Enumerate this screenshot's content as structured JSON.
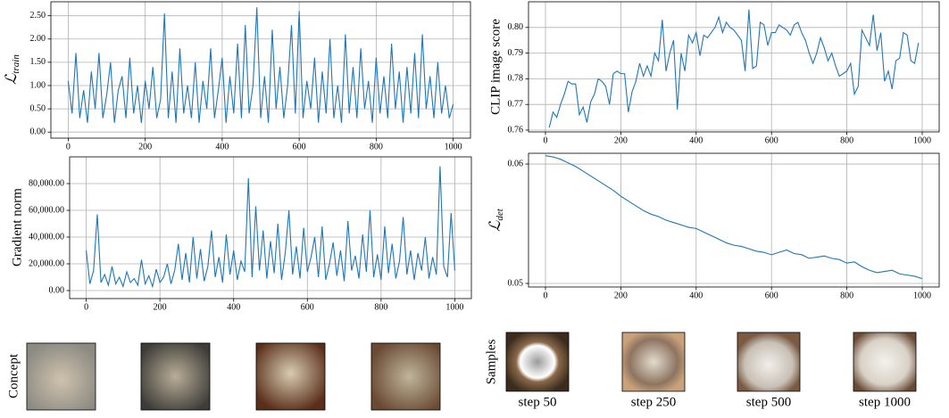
{
  "chart_data": [
    {
      "type": "line",
      "ylabel": {
        "symbol": "ℒ",
        "sub": "train"
      },
      "color": "#1f77b4",
      "grid": true,
      "xlim": [
        -45,
        1045
      ],
      "ylim": [
        -0.13,
        2.8
      ],
      "xticks": [
        0,
        200,
        400,
        600,
        800,
        1000
      ],
      "yticks": [
        {
          "value": 0,
          "label": "0.00"
        },
        {
          "value": 0.5,
          "label": "0.50"
        },
        {
          "value": 1,
          "label": "1.00"
        },
        {
          "value": 1.5,
          "label": "1.50"
        },
        {
          "value": 2,
          "label": "2.00"
        },
        {
          "value": 2.5,
          "label": "2.50"
        }
      ],
      "x": [
        0,
        10,
        20,
        30,
        40,
        50,
        60,
        70,
        80,
        90,
        100,
        110,
        120,
        130,
        140,
        150,
        160,
        170,
        180,
        190,
        200,
        210,
        220,
        230,
        240,
        250,
        260,
        270,
        280,
        290,
        300,
        310,
        320,
        330,
        340,
        350,
        360,
        370,
        380,
        390,
        400,
        410,
        420,
        430,
        440,
        450,
        460,
        470,
        480,
        490,
        500,
        510,
        520,
        530,
        540,
        550,
        560,
        570,
        580,
        590,
        600,
        610,
        620,
        630,
        640,
        650,
        660,
        670,
        680,
        690,
        700,
        710,
        720,
        730,
        740,
        750,
        760,
        770,
        780,
        790,
        800,
        810,
        820,
        830,
        840,
        850,
        860,
        870,
        880,
        890,
        900,
        910,
        920,
        930,
        940,
        950,
        960,
        970,
        980,
        990,
        1000
      ],
      "values": [
        1.1,
        0.4,
        1.7,
        0.3,
        0.9,
        0.2,
        1.3,
        0.5,
        1.7,
        0.3,
        0.8,
        1.5,
        0.2,
        0.9,
        1.2,
        0.3,
        1.6,
        0.4,
        1.0,
        0.2,
        1.1,
        0.5,
        1.4,
        0.3,
        0.7,
        2.55,
        0.3,
        1.3,
        0.2,
        1.8,
        0.4,
        1.0,
        0.3,
        1.5,
        0.2,
        1.1,
        0.5,
        1.8,
        0.3,
        0.9,
        1.6,
        0.2,
        1.2,
        0.4,
        1.9,
        0.3,
        2.3,
        0.4,
        1.0,
        2.68,
        0.3,
        1.2,
        0.2,
        2.2,
        0.5,
        1.4,
        0.3,
        1.0,
        2.3,
        0.4,
        2.6,
        0.3,
        1.1,
        0.5,
        1.6,
        0.2,
        1.3,
        0.4,
        2.0,
        0.3,
        1.0,
        0.2,
        2.1,
        0.4,
        1.4,
        0.3,
        1.8,
        0.5,
        1.1,
        0.2,
        1.6,
        0.4,
        1.2,
        0.3,
        1.9,
        0.5,
        1.3,
        0.2,
        1.4,
        0.4,
        1.7,
        0.3,
        2.1,
        0.5,
        1.2,
        0.3,
        1.5,
        0.4,
        1.0,
        0.3,
        0.6
      ]
    },
    {
      "type": "line",
      "ylabel": "Gradient norm",
      "color": "#1f77b4",
      "grid": true,
      "xlim": [
        -45,
        1045
      ],
      "ylim": [
        -6000,
        100000
      ],
      "xticks": [
        0,
        200,
        400,
        600,
        800,
        1000
      ],
      "yticks": [
        {
          "value": 0,
          "label": "0.00"
        },
        {
          "value": 20000,
          "label": "20,000.00"
        },
        {
          "value": 40000,
          "label": "40,000.00"
        },
        {
          "value": 60000,
          "label": "60,000.00"
        },
        {
          "value": 80000,
          "label": "80,000.00"
        }
      ],
      "x": [
        0,
        10,
        20,
        30,
        40,
        50,
        60,
        70,
        80,
        90,
        100,
        110,
        120,
        130,
        140,
        150,
        160,
        170,
        180,
        190,
        200,
        210,
        220,
        230,
        240,
        250,
        260,
        270,
        280,
        290,
        300,
        310,
        320,
        330,
        340,
        350,
        360,
        370,
        380,
        390,
        400,
        410,
        420,
        430,
        440,
        450,
        460,
        470,
        480,
        490,
        500,
        510,
        520,
        530,
        540,
        550,
        560,
        570,
        580,
        590,
        600,
        610,
        620,
        630,
        640,
        650,
        660,
        670,
        680,
        690,
        700,
        710,
        720,
        730,
        740,
        750,
        760,
        770,
        780,
        790,
        800,
        810,
        820,
        830,
        840,
        850,
        860,
        870,
        880,
        890,
        900,
        910,
        920,
        930,
        940,
        950,
        960,
        970,
        980,
        990,
        1000
      ],
      "values": [
        30000,
        5000,
        15000,
        57000,
        6000,
        12000,
        4000,
        18000,
        5000,
        10000,
        3000,
        14000,
        6000,
        9000,
        4000,
        23000,
        5000,
        11000,
        3000,
        16000,
        6000,
        10000,
        20000,
        5000,
        15000,
        35000,
        8000,
        28000,
        6000,
        40000,
        9000,
        31000,
        7000,
        18000,
        45000,
        10000,
        25000,
        6000,
        42000,
        12000,
        30000,
        8000,
        22000,
        14000,
        84000,
        10000,
        63000,
        15000,
        45000,
        9000,
        37000,
        13000,
        50000,
        8000,
        28000,
        60000,
        12000,
        33000,
        9000,
        47000,
        14000,
        25000,
        40000,
        10000,
        48000,
        8000,
        20000,
        36000,
        11000,
        30000,
        7000,
        52000,
        15000,
        26000,
        9000,
        42000,
        14000,
        60000,
        10000,
        27000,
        8000,
        48000,
        13000,
        35000,
        9000,
        22000,
        55000,
        12000,
        30000,
        8000,
        28000,
        15000,
        40000,
        9000,
        25000,
        12000,
        93000,
        18000,
        10000,
        58000,
        15000
      ]
    },
    {
      "type": "line",
      "ylabel": "CLIP image score",
      "color": "#1f77b4",
      "grid": true,
      "xlim": [
        -45,
        1045
      ],
      "ylim": [
        0.7593,
        0.81
      ],
      "xticks": [
        0,
        200,
        400,
        600,
        800,
        1000
      ],
      "yticks": [
        0.76,
        0.77,
        0.78,
        0.79,
        {
          "value": 0.8,
          "label": "0.80"
        }
      ],
      "x": [
        10,
        20,
        30,
        40,
        50,
        60,
        70,
        80,
        90,
        100,
        110,
        120,
        130,
        140,
        150,
        160,
        170,
        180,
        190,
        200,
        210,
        220,
        230,
        240,
        250,
        260,
        270,
        280,
        290,
        300,
        310,
        320,
        330,
        340,
        350,
        360,
        370,
        380,
        390,
        400,
        410,
        420,
        430,
        440,
        450,
        460,
        470,
        480,
        490,
        500,
        510,
        520,
        530,
        540,
        550,
        560,
        570,
        580,
        590,
        600,
        610,
        620,
        630,
        640,
        650,
        660,
        670,
        680,
        690,
        700,
        710,
        720,
        730,
        740,
        750,
        760,
        770,
        780,
        790,
        800,
        810,
        820,
        830,
        840,
        850,
        860,
        870,
        880,
        890,
        900,
        910,
        920,
        930,
        940,
        950,
        960,
        970,
        980,
        990
      ],
      "values": [
        0.761,
        0.767,
        0.765,
        0.77,
        0.774,
        0.779,
        0.778,
        0.778,
        0.766,
        0.769,
        0.763,
        0.771,
        0.774,
        0.78,
        0.779,
        0.777,
        0.77,
        0.782,
        0.783,
        0.782,
        0.782,
        0.767,
        0.775,
        0.779,
        0.786,
        0.781,
        0.785,
        0.781,
        0.79,
        0.787,
        0.803,
        0.783,
        0.79,
        0.795,
        0.768,
        0.79,
        0.783,
        0.797,
        0.794,
        0.798,
        0.789,
        0.797,
        0.796,
        0.798,
        0.8,
        0.804,
        0.798,
        0.802,
        0.8,
        0.799,
        0.797,
        0.795,
        0.783,
        0.807,
        0.784,
        0.785,
        0.802,
        0.801,
        0.793,
        0.798,
        0.798,
        0.801,
        0.8,
        0.799,
        0.797,
        0.801,
        0.802,
        0.798,
        0.795,
        0.79,
        0.786,
        0.79,
        0.796,
        0.792,
        0.787,
        0.79,
        0.785,
        0.781,
        0.782,
        0.783,
        0.786,
        0.774,
        0.777,
        0.799,
        0.796,
        0.793,
        0.805,
        0.791,
        0.798,
        0.779,
        0.783,
        0.776,
        0.787,
        0.788,
        0.798,
        0.797,
        0.787,
        0.786,
        0.794
      ]
    },
    {
      "type": "line",
      "ylabel": {
        "symbol": "ℒ",
        "sub": "det"
      },
      "color": "#1f77b4",
      "grid": true,
      "xlim": [
        -45,
        1045
      ],
      "ylim": [
        0.0497,
        0.0609
      ],
      "xticks": [
        0,
        200,
        400,
        600,
        800,
        1000
      ],
      "yticks": [
        0.05,
        0.06
      ],
      "x": [
        0,
        20,
        40,
        60,
        80,
        100,
        120,
        140,
        160,
        180,
        200,
        220,
        240,
        260,
        280,
        300,
        320,
        340,
        360,
        380,
        400,
        420,
        440,
        460,
        480,
        500,
        520,
        540,
        560,
        580,
        600,
        620,
        640,
        660,
        680,
        700,
        720,
        740,
        760,
        780,
        800,
        820,
        840,
        860,
        880,
        900,
        920,
        940,
        960,
        980,
        1000
      ],
      "values": [
        0.0607,
        0.0606,
        0.0604,
        0.0601,
        0.0598,
        0.0594,
        0.059,
        0.0586,
        0.0582,
        0.0578,
        0.0573,
        0.0569,
        0.0565,
        0.0561,
        0.0558,
        0.0556,
        0.0553,
        0.0551,
        0.0549,
        0.0547,
        0.0546,
        0.0543,
        0.054,
        0.0537,
        0.0534,
        0.0532,
        0.0531,
        0.0529,
        0.0527,
        0.0526,
        0.0524,
        0.0526,
        0.0528,
        0.0525,
        0.0524,
        0.0521,
        0.0522,
        0.0523,
        0.0521,
        0.052,
        0.0517,
        0.0518,
        0.0514,
        0.0511,
        0.0509,
        0.051,
        0.0511,
        0.0508,
        0.0507,
        0.0506,
        0.0504
      ]
    }
  ],
  "panels": {
    "concept_label": "Concept",
    "samples_label": "Samples",
    "sample_captions": [
      "step 50",
      "step 250",
      "step 500",
      "step 1000"
    ]
  }
}
